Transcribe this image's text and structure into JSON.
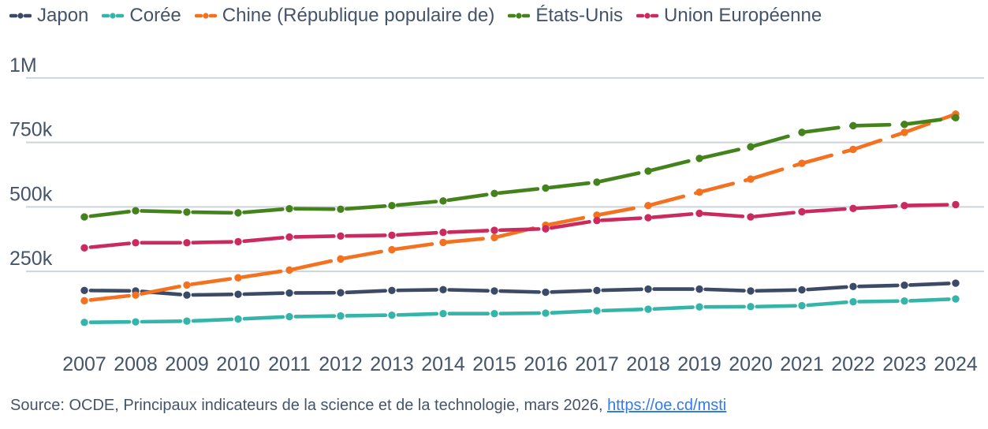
{
  "theme": {
    "text_color": "#44546a",
    "grid_color": "#cdd4dc",
    "link_color": "#2f7cec",
    "background": "#ffffff"
  },
  "chart_data": {
    "type": "line",
    "line_style": "dashed-with-round-markers",
    "grid": "horizontal-only",
    "legend_position": "top-left",
    "ylim": [
      0,
      1000000
    ],
    "yticks": [
      {
        "value": 1000000,
        "label": "1M"
      },
      {
        "value": 750000,
        "label": "750k"
      },
      {
        "value": 500000,
        "label": "500k"
      },
      {
        "value": 250000,
        "label": "250k"
      }
    ],
    "x": [
      2007,
      2008,
      2009,
      2010,
      2011,
      2012,
      2013,
      2014,
      2015,
      2016,
      2017,
      2018,
      2019,
      2020,
      2021,
      2022,
      2023,
      2024
    ],
    "series": [
      {
        "name": "Japon",
        "color": "#3b4a66",
        "values": [
          176000,
          174000,
          158000,
          161000,
          166000,
          167000,
          176000,
          179000,
          174000,
          169000,
          176000,
          181000,
          181000,
          174000,
          178000,
          191000,
          196000,
          204000
        ]
      },
      {
        "name": "Corée",
        "color": "#35b5a9",
        "values": [
          52000,
          54000,
          57000,
          65000,
          74000,
          77000,
          80000,
          86000,
          86000,
          88000,
          97000,
          103000,
          112000,
          113000,
          117000,
          132000,
          135000,
          143000
        ]
      },
      {
        "name": "Chine (République populaire de)",
        "color": "#f4711f",
        "values": [
          136000,
          158000,
          197000,
          225000,
          255000,
          298000,
          334000,
          362000,
          381000,
          429000,
          468000,
          505000,
          557000,
          608000,
          669000,
          723000,
          789000,
          860000
        ]
      },
      {
        "name": "États-Unis",
        "color": "#44831c",
        "values": [
          461000,
          485000,
          480000,
          477000,
          493000,
          491000,
          505000,
          523000,
          552000,
          573000,
          596000,
          639000,
          688000,
          733000,
          789000,
          815000,
          820000,
          846000
        ]
      },
      {
        "name": "Union Européenne",
        "color": "#cb2a5e",
        "values": [
          341000,
          361000,
          361000,
          365000,
          383000,
          387000,
          390000,
          401000,
          409000,
          415000,
          447000,
          458000,
          475000,
          461000,
          481000,
          494000,
          505000,
          509000
        ]
      }
    ]
  },
  "source": {
    "prefix": "Source: OCDE, Principaux indicateurs de la science et de la technologie, mars 2026, ",
    "link_text": "https://oe.cd/msti"
  }
}
